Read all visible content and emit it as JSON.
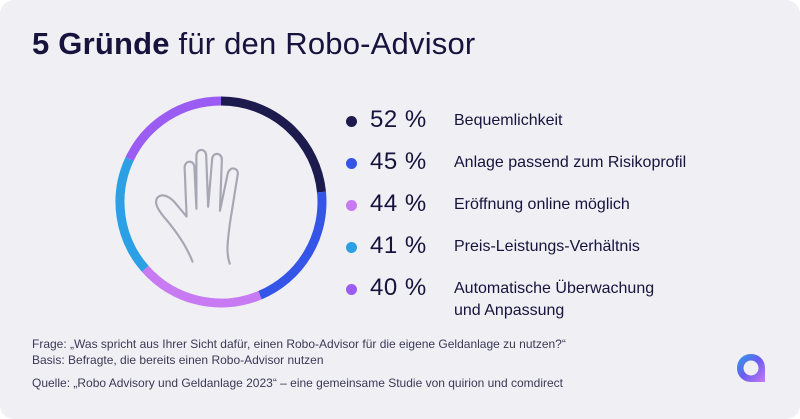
{
  "header": {
    "title_bold": "5 Gründe",
    "title_rest": "für den Robo-Advisor"
  },
  "chart_data": {
    "type": "pie",
    "categories": [
      "Bequemlichkeit",
      "Anlage passend zum Risikoprofil",
      "Eröffnung online möglich",
      "Preis-Leistungs-Verhältnis",
      "Automatische Überwachung und Anpassung"
    ],
    "values": [
      52,
      45,
      44,
      41,
      40
    ],
    "value_labels": [
      "52 %",
      "45 %",
      "44 %",
      "41 %",
      "40 %"
    ],
    "colors": [
      "#1d1a4d",
      "#3555e8",
      "#c77af2",
      "#2ba0e4",
      "#9a5cf2"
    ],
    "legend_placement": "right"
  },
  "legend": {
    "items": [
      {
        "pct": "52 %",
        "label": "Bequemlichkeit",
        "color": "#1d1a4d"
      },
      {
        "pct": "45 %",
        "label": "Anlage passend zum Risikoprofil",
        "color": "#3555e8"
      },
      {
        "pct": "44 %",
        "label": "Eröffnung online möglich",
        "color": "#c77af2"
      },
      {
        "pct": "41 %",
        "label": "Preis-Leistungs-Verhältnis",
        "color": "#2ba0e4"
      },
      {
        "pct": "40 %",
        "label": "Automatische Überwachung",
        "label_line2": "und Anpassung",
        "color": "#9a5cf2"
      }
    ]
  },
  "notes": {
    "question": "Frage: „Was spricht aus Ihrer Sicht dafür, einen Robo-Advisor für die eigene Geldanlage zu nutzen?“",
    "basis": "Basis: Befragte, die bereits einen Robo-Advisor nutzen",
    "source": "Quelle: „Robo Advisory und Geldanlage 2023“ – eine gemeinsame Studie von quirion und comdirect"
  },
  "icons": {
    "center": "hand-icon",
    "brand": "brand-logo-icon"
  }
}
